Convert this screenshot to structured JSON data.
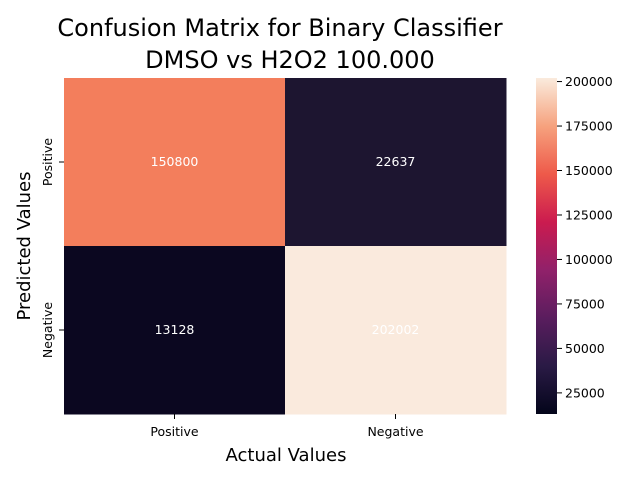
{
  "chart_data": {
    "type": "heatmap",
    "title": "Confusion Matrix for Binary Classifier",
    "subtitle": "DMSO vs H2O2 100.000",
    "xlabel": "Actual Values",
    "ylabel": "Predicted Values",
    "x_categories": [
      "Positive",
      "Negative"
    ],
    "y_categories": [
      "Positive",
      "Negative"
    ],
    "matrix": [
      [
        150800,
        22637
      ],
      [
        13128,
        202002
      ]
    ],
    "cell_labels": [
      [
        "150800",
        "22637"
      ],
      [
        "13128",
        "202002"
      ]
    ],
    "cell_colors": [
      [
        "#f37e5c",
        "#1d1530"
      ],
      [
        "#0b0720",
        "#faeadd"
      ]
    ],
    "cell_label_color": "#ffffff",
    "colorbar": {
      "range": [
        13128,
        202002
      ],
      "ticks": [
        25000,
        50000,
        75000,
        100000,
        125000,
        150000,
        175000,
        200000
      ],
      "tick_labels": [
        "25000",
        "50000",
        "75000",
        "100000",
        "125000",
        "150000",
        "175000",
        "200000"
      ],
      "colormap_stops": [
        "#03051a",
        "#2a1a45",
        "#5a1d5e",
        "#91216a",
        "#cb1b4f",
        "#ee5a4a",
        "#f6a27e",
        "#faebdd"
      ]
    }
  }
}
